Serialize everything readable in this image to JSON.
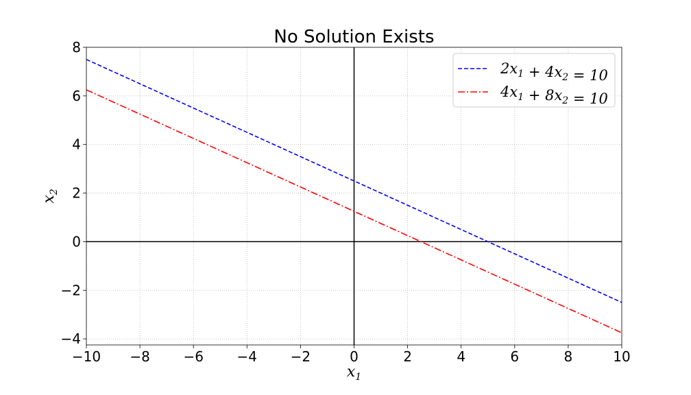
{
  "chart_data": {
    "type": "line",
    "title": "No Solution Exists",
    "xlabel": "x1",
    "ylabel": "x2",
    "xlim": [
      -10,
      10
    ],
    "ylim": [
      -4.25,
      8
    ],
    "xticks": [
      -10,
      -8,
      -6,
      -4,
      -2,
      0,
      2,
      4,
      6,
      8,
      10
    ],
    "yticks": [
      -4,
      -2,
      0,
      2,
      4,
      6,
      8
    ],
    "xtick_labels": [
      "−10",
      "−8",
      "−6",
      "−4",
      "−2",
      "0",
      "2",
      "4",
      "6",
      "8",
      "10"
    ],
    "ytick_labels": [
      "−4",
      "−2",
      "0",
      "2",
      "4",
      "6",
      "8"
    ],
    "grid": true,
    "legend_position": "upper right",
    "series": [
      {
        "name": "2x1 + 4x2 = 10",
        "color": "#0000ff",
        "style": "dashed",
        "x": [
          -10,
          10
        ],
        "y": [
          7.5,
          -2.5
        ]
      },
      {
        "name": "4x1 + 8x2 = 10",
        "color": "#ff0000",
        "style": "dashdot",
        "x": [
          -10,
          10
        ],
        "y": [
          6.25,
          -3.75
        ]
      }
    ]
  }
}
